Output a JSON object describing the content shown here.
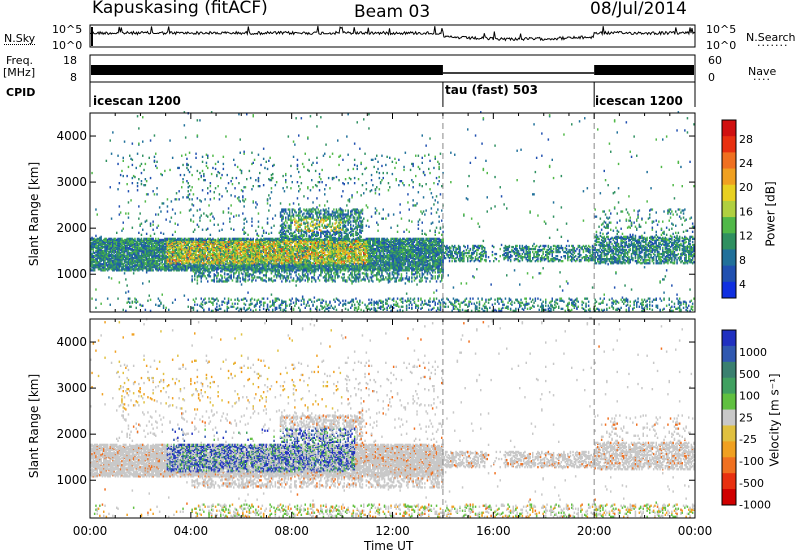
{
  "header": {
    "station": "Kapuskasing (fitACF)",
    "beam": "Beam 03",
    "date": "08/Jul/2014"
  },
  "side_labels": {
    "nsky": "N.Sky",
    "freq": "Freq.",
    "freq_unit": "[MHz]",
    "cpid": "CPID",
    "nsearch": "N.Search",
    "nave": "Nave"
  },
  "small_axes": {
    "nsky_ticks": [
      "10^5",
      "10^0"
    ],
    "nsearch_ticks": [
      "10^5",
      "10^0"
    ],
    "freq_ticks": [
      "18",
      "8"
    ],
    "nave_ticks": [
      "60",
      "0"
    ]
  },
  "cpid_segments": [
    {
      "label": "icescan 1200",
      "start_hr": 0,
      "end_hr": 14
    },
    {
      "label": "tau (fast) 503",
      "start_hr": 14,
      "end_hr": 20
    },
    {
      "label": "icescan 1200",
      "start_hr": 20,
      "end_hr": 24
    }
  ],
  "chart_data": [
    {
      "type": "heatmap",
      "name": "power",
      "ylabel": "Slant Range [km]",
      "xlabel": "Time UT",
      "xlim": [
        0,
        24
      ],
      "ylim": [
        180,
        4500
      ],
      "y_ticks": [
        "1000",
        "2000",
        "3000",
        "4000"
      ],
      "x_ticks": [
        "00:00",
        "04:00",
        "08:00",
        "12:00",
        "16:00",
        "20:00",
        "00:00"
      ],
      "colorbar": {
        "label": "Power [dB]",
        "ticks": [
          "4",
          "8",
          "12",
          "16",
          "20",
          "24",
          "28"
        ],
        "colors": [
          "#1030e0",
          "#2050b0",
          "#20709a",
          "#2f9060",
          "#50b848",
          "#b0d040",
          "#e8d020",
          "#f0a020",
          "#f07020",
          "#e83010",
          "#d01010"
        ]
      }
    },
    {
      "type": "heatmap",
      "name": "velocity",
      "ylabel": "Slant Range [km]",
      "xlabel": "Time UT",
      "xlim": [
        0,
        24
      ],
      "ylim": [
        180,
        4500
      ],
      "y_ticks": [
        "1000",
        "2000",
        "3000",
        "4000"
      ],
      "x_ticks": [
        "00:00",
        "04:00",
        "08:00",
        "12:00",
        "16:00",
        "20:00",
        "00:00"
      ],
      "colorbar": {
        "label": "Velocity [m s⁻¹]",
        "ticks": [
          "1000",
          "500",
          "100",
          "25",
          "-25",
          "-100",
          "-500",
          "-1000"
        ],
        "colors": [
          "#2030c0",
          "#3058b0",
          "#3a8070",
          "#40a060",
          "#60c040",
          "#c8c8c8",
          "#e0c040",
          "#f0a020",
          "#f07020",
          "#e83010",
          "#d00000"
        ]
      }
    }
  ],
  "x_axis_label": "Time UT"
}
